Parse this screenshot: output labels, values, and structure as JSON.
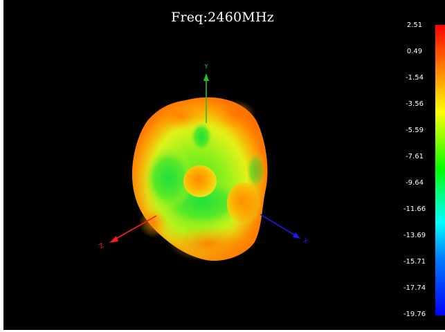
{
  "title": "Freq:2460MHz",
  "axes": {
    "x_label": "X",
    "y_label": "Y",
    "z_label": "Z",
    "colors": {
      "x": "#1a1aff",
      "y": "#22c322",
      "z": "#ff1a1a"
    }
  },
  "colorbar": {
    "ticks": [
      "2.51",
      "0.49",
      "-1.54",
      "-3.56",
      "-5.59",
      "-7.61",
      "-9.64",
      "-11.66",
      "-13.69",
      "-15.71",
      "-17.74",
      "-19.76"
    ],
    "max_color": "#ff0000",
    "min_color": "#0000ff"
  }
}
